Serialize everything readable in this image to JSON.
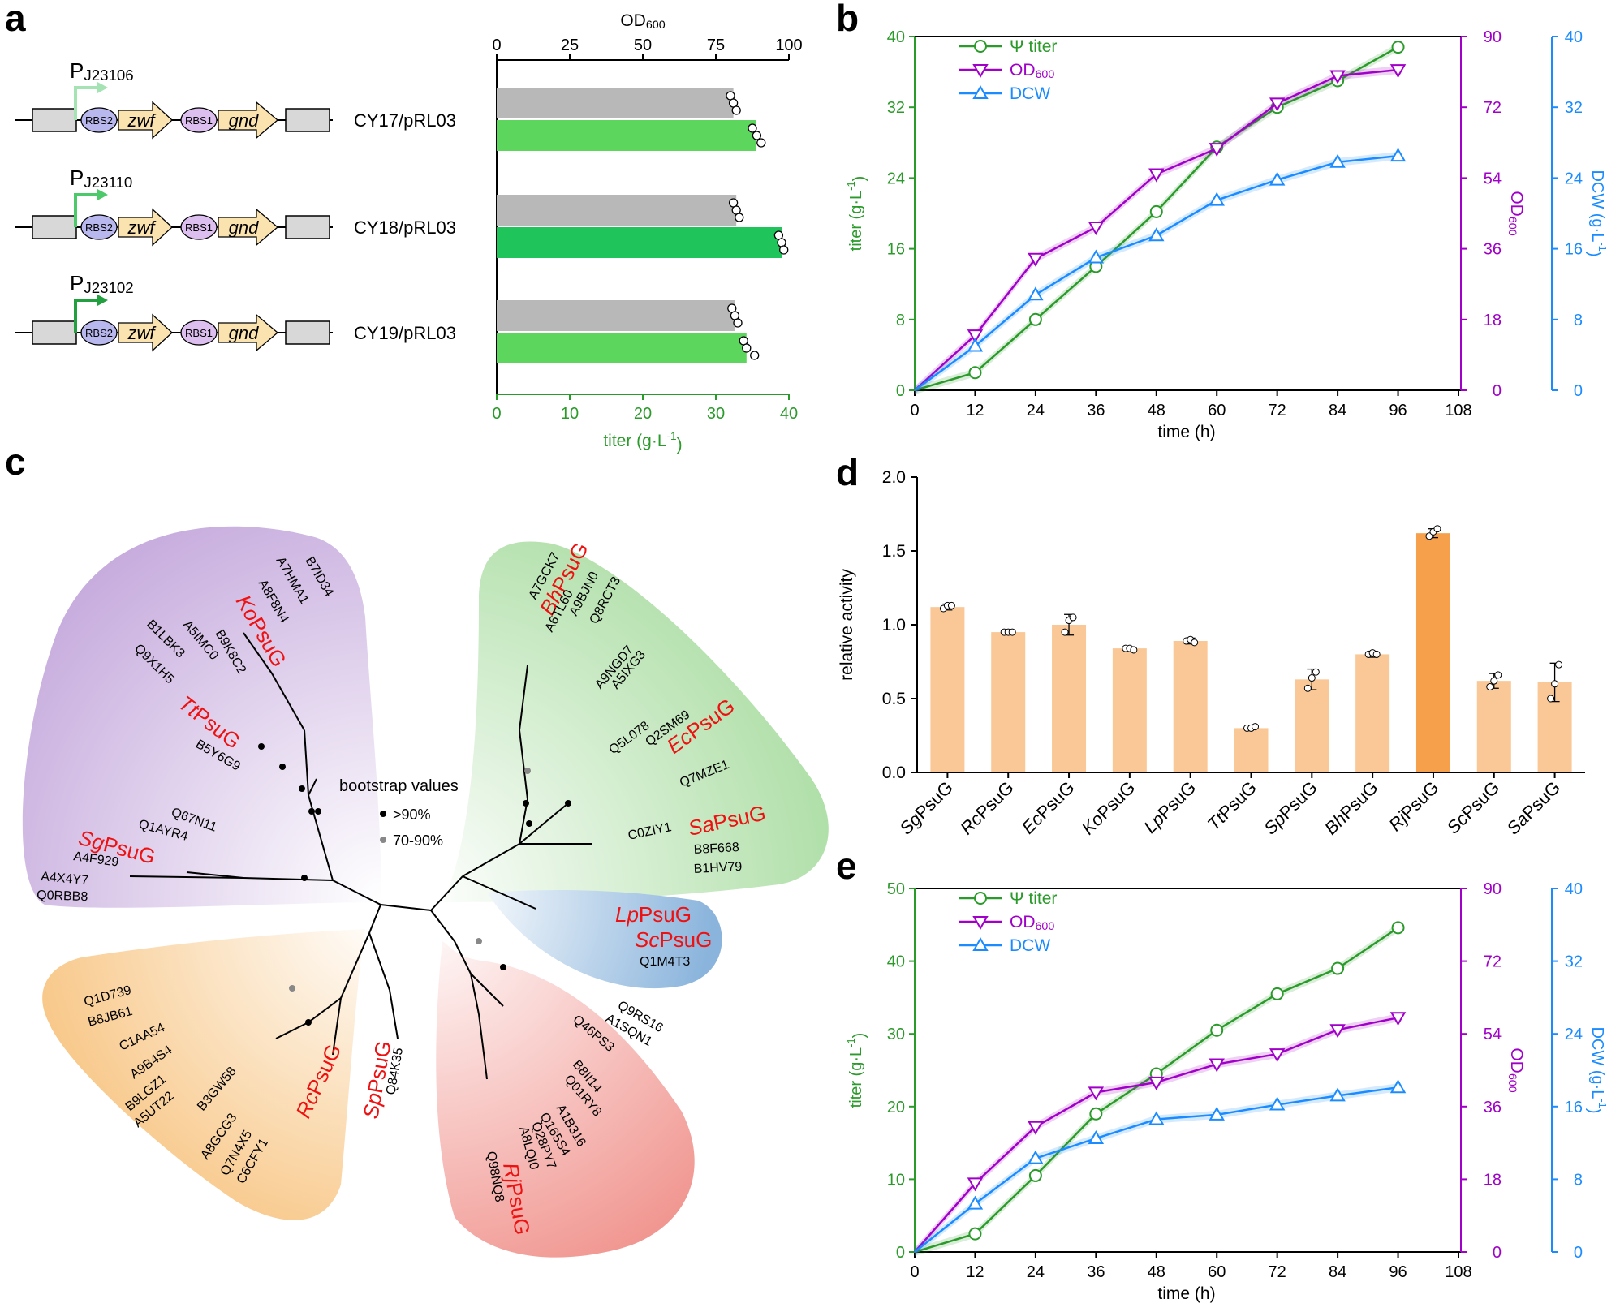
{
  "figure": {
    "colors": {
      "green": "#2a9a2a",
      "green_light": "#5cd65c",
      "green_bright": "#1fc45a",
      "grey": "#b8b8b8",
      "purple": "#a000c8",
      "blue": "#1a8cff",
      "orange_light": "#fac896",
      "orange_dark": "#f7a04b",
      "red": "#ee1111"
    },
    "panel_a": {
      "letter": "a",
      "constructs": [
        {
          "promoter_base": "P",
          "promoter_sub": "J23106",
          "label": "CY17/pRL03",
          "rbs_left": "RBS2",
          "gene1": "zwf",
          "rbs_right": "RBS1",
          "gene2": "gnd",
          "arrow_color": "#a6e3b4",
          "bar_color": "#5cd65c",
          "od600": 81,
          "titer": 35.5,
          "od600_points": [
            80,
            81,
            82
          ],
          "titer_points": [
            35,
            35.6,
            36.2
          ]
        },
        {
          "promoter_base": "P",
          "promoter_sub": "J23110",
          "label": "CY18/pRL03",
          "rbs_left": "RBS2",
          "gene1": "zwf",
          "rbs_right": "RBS1",
          "gene2": "gnd",
          "arrow_color": "#4cc96a",
          "bar_color": "#1fc45a",
          "od600": 82,
          "titer": 39,
          "od600_points": [
            81,
            82,
            83
          ],
          "titer_points": [
            38.6,
            39,
            39.3
          ]
        },
        {
          "promoter_base": "P",
          "promoter_sub": "J23102",
          "label": "CY19/pRL03",
          "rbs_left": "RBS2",
          "gene1": "zwf",
          "rbs_right": "RBS1",
          "gene2": "gnd",
          "arrow_color": "#22a040",
          "bar_color": "#5cd65c",
          "od600": 81.5,
          "titer": 34.2,
          "od600_points": [
            80.5,
            81.5,
            82.5
          ],
          "titer_points": [
            33.8,
            34.2,
            35.3
          ]
        }
      ],
      "top_axis": {
        "label": "OD",
        "label_sub": "600",
        "ticks": [
          0,
          25,
          50,
          75,
          100
        ],
        "range": [
          0,
          100
        ]
      },
      "bottom_axis": {
        "label": "titer (g·L",
        "label_sup": "-1",
        "label_end": ")",
        "ticks": [
          0,
          10,
          20,
          30,
          40
        ],
        "range": [
          0,
          40
        ]
      }
    },
    "legend_common": {
      "titer": "Ψ titer",
      "od_base": "OD",
      "od_sub": "600",
      "dcw": "DCW"
    },
    "axis_common": {
      "x_label": "time (h)",
      "y_left_label": "titer (g·L",
      "y_left_sup": "-1",
      "y_left_end": ")",
      "y_mid_base": "OD",
      "y_mid_sub": "600",
      "y_right_label": "DCW (g·L",
      "y_right_sup": "-1",
      "y_right_end": ")"
    }
  },
  "chart_data": [
    {
      "panel": "b",
      "type": "line",
      "x": [
        0,
        12,
        24,
        36,
        48,
        60,
        72,
        84,
        96
      ],
      "xlim": [
        0,
        108
      ],
      "xticks": [
        0,
        12,
        24,
        36,
        48,
        60,
        72,
        84,
        96,
        108
      ],
      "series": [
        {
          "name": "Ψ titer",
          "axis": "left",
          "values": [
            0,
            2,
            8,
            14,
            20.2,
            27.5,
            32,
            35,
            38.8
          ],
          "color": "#2a9a2a",
          "marker": "circle"
        },
        {
          "name": "OD600",
          "axis": "mid",
          "values": [
            0,
            14,
            33.5,
            41.5,
            55,
            61.5,
            73,
            80,
            81.5
          ],
          "color": "#a000c8",
          "marker": "triangle-down"
        },
        {
          "name": "DCW",
          "axis": "right",
          "values": [
            0,
            5,
            10.8,
            15,
            17.5,
            21.5,
            23.8,
            25.8,
            26.5
          ],
          "color": "#1a8cff",
          "marker": "triangle-up"
        }
      ],
      "ylim_left": [
        0,
        40
      ],
      "yticks_left": [
        0,
        8,
        16,
        24,
        32,
        40
      ],
      "ylim_mid": [
        0,
        90
      ],
      "yticks_mid": [
        0,
        18,
        36,
        54,
        72,
        90
      ],
      "ylim_right": [
        0,
        40
      ],
      "yticks_right": [
        0,
        8,
        16,
        24,
        32,
        40
      ]
    },
    {
      "panel": "d",
      "type": "bar",
      "ylabel": "relative activity",
      "categories": [
        {
          "prefix": "Sg",
          "suffix": "PsuG"
        },
        {
          "prefix": "Rc",
          "suffix": "PsuG"
        },
        {
          "prefix": "Ec",
          "suffix": "PsuG"
        },
        {
          "prefix": "Ko",
          "suffix": "PsuG"
        },
        {
          "prefix": "Lp",
          "suffix": "PsuG"
        },
        {
          "prefix": "Tt",
          "suffix": "PsuG"
        },
        {
          "prefix": "Sp",
          "suffix": "PsuG"
        },
        {
          "prefix": "Bh",
          "suffix": "PsuG"
        },
        {
          "prefix": "Rj",
          "suffix": "PsuG"
        },
        {
          "prefix": "Sc",
          "suffix": "PsuG"
        },
        {
          "prefix": "Sa",
          "suffix": "PsuG"
        }
      ],
      "values": [
        1.12,
        0.95,
        1.0,
        0.84,
        0.89,
        0.3,
        0.63,
        0.8,
        1.62,
        0.62,
        0.61
      ],
      "errors": [
        0.02,
        0.01,
        0.07,
        0.01,
        0.02,
        0.01,
        0.07,
        0.02,
        0.03,
        0.05,
        0.13
      ],
      "points": [
        [
          1.11,
          1.13,
          1.13
        ],
        [
          0.95,
          0.95,
          0.95
        ],
        [
          0.95,
          1.03,
          1.05
        ],
        [
          0.84,
          0.84,
          0.83
        ],
        [
          0.89,
          0.9,
          0.88
        ],
        [
          0.3,
          0.3,
          0.31
        ],
        [
          0.57,
          0.64,
          0.68
        ],
        [
          0.8,
          0.81,
          0.8
        ],
        [
          1.6,
          1.63,
          1.65
        ],
        [
          0.58,
          0.62,
          0.66
        ],
        [
          0.5,
          0.6,
          0.73
        ]
      ],
      "highlight_index": 8,
      "ylim": [
        0,
        2.0
      ],
      "yticks": [
        "0.0",
        "0.5",
        "1.0",
        "1.5",
        "2.0"
      ]
    },
    {
      "panel": "e",
      "type": "line",
      "x": [
        0,
        12,
        24,
        36,
        48,
        60,
        72,
        84,
        96
      ],
      "xlim": [
        0,
        108
      ],
      "xticks": [
        0,
        12,
        24,
        36,
        48,
        60,
        72,
        84,
        96,
        108
      ],
      "series": [
        {
          "name": "Ψ titer",
          "axis": "left",
          "values": [
            0,
            2.5,
            10.5,
            19,
            24.5,
            30.5,
            35.5,
            39,
            44.6
          ],
          "color": "#2a9a2a",
          "marker": "circle"
        },
        {
          "name": "OD600",
          "axis": "mid",
          "values": [
            0,
            17,
            31,
            39.5,
            42,
            46.5,
            49,
            55,
            58
          ],
          "color": "#a000c8",
          "marker": "triangle-down"
        },
        {
          "name": "DCW",
          "axis": "right",
          "values": [
            0,
            5.3,
            10.3,
            12.5,
            14.6,
            15.1,
            16.2,
            17.2,
            18.1
          ],
          "color": "#1a8cff",
          "marker": "triangle-up"
        }
      ],
      "ylim_left": [
        0,
        50
      ],
      "yticks_left": [
        0,
        10,
        20,
        30,
        40,
        50
      ],
      "ylim_mid": [
        0,
        90
      ],
      "yticks_mid": [
        0,
        18,
        36,
        54,
        72,
        90
      ],
      "ylim_right": [
        0,
        40
      ],
      "yticks_right": [
        0,
        8,
        16,
        24,
        32,
        40
      ]
    },
    {
      "panel": "c",
      "type": "tree",
      "bootstrap_title": "bootstrap values",
      "bootstrap_high": ">90%",
      "bootstrap_mid": "70-90%",
      "clades": [
        {
          "name": "purple",
          "color": "#c4a8dc",
          "red_labels": [
            {
              "prefix": "Ko",
              "suffix": "PsuG"
            },
            {
              "prefix": "Tt",
              "suffix": "PsuG"
            },
            {
              "prefix": "Sg",
              "suffix": "PsuG"
            }
          ],
          "ids": [
            "B7ID34",
            "A7HMA1",
            "A8F8N4",
            "B9K8C2",
            "A5IMC0",
            "B1LBK3",
            "Q9X1H5",
            "B5Y6G9",
            "Q67N11",
            "Q1AYR4",
            "A4F929",
            "A4X4Y7",
            "Q0RBB8"
          ]
        },
        {
          "name": "green",
          "color": "#a8dca0",
          "red_labels": [
            {
              "prefix": "Bh",
              "suffix": "PsuG"
            },
            {
              "prefix": "Ec",
              "suffix": "PsuG"
            },
            {
              "prefix": "Sa",
              "suffix": "PsuG"
            }
          ],
          "ids": [
            "A7GCK7",
            "A6TL60",
            "A9BJN0",
            "Q8RCT3",
            "A9NGD7",
            "A5IXG3",
            "Q5L078",
            "Q2SM69",
            "Q7MZE1",
            "C0ZIY1",
            "B8F668",
            "B1HV79"
          ]
        },
        {
          "name": "blue",
          "color": "#8ab4dc",
          "red_labels": [
            {
              "prefix": "Lp",
              "suffix": "PsuG"
            },
            {
              "prefix": "Sc",
              "suffix": "PsuG"
            }
          ],
          "ids": [
            "Q1M4T3"
          ]
        },
        {
          "name": "orange",
          "color": "#f7c078",
          "red_labels": [
            {
              "prefix": "Rc",
              "suffix": "PsuG"
            }
          ],
          "ids": [
            "Q1D739",
            "B8JB61",
            "C1AA54",
            "A9B4S4",
            "B9LGZ1",
            "A5UT22",
            "B3GW58",
            "A8GCG3",
            "Q7N4X5",
            "C6CFY1"
          ]
        },
        {
          "name": "none",
          "color": "",
          "red_labels": [
            {
              "prefix": "Sp",
              "suffix": "PsuG"
            }
          ],
          "ids": [
            "Q84K35"
          ]
        },
        {
          "name": "red",
          "color": "#f0908a",
          "red_labels": [
            {
              "prefix": "Rj",
              "suffix": "PsuG"
            }
          ],
          "ids": [
            "Q9RS16",
            "A1SQN1",
            "Q46PS3",
            "B8II14",
            "Q01RY8",
            "A1B316",
            "Q165S4",
            "Q28PY7",
            "A8LQI0",
            "Q98NQ8"
          ]
        }
      ]
    }
  ]
}
